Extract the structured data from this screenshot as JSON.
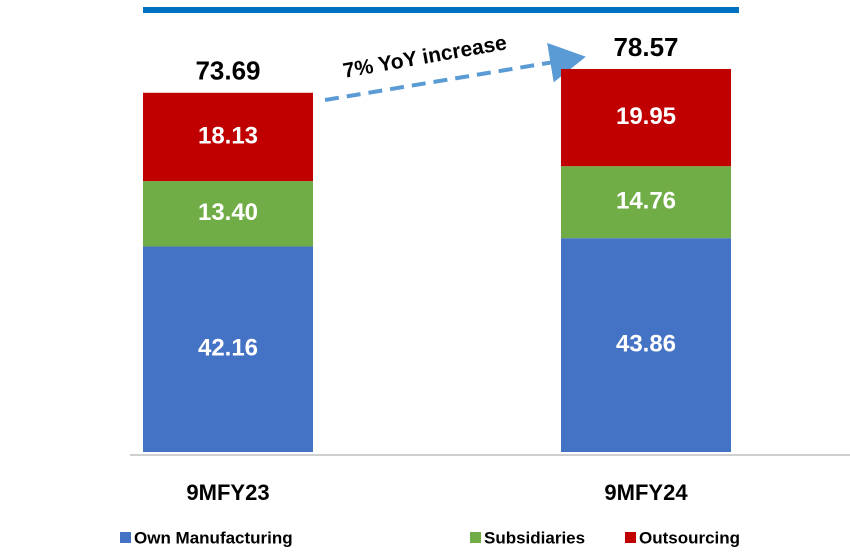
{
  "chart_data": {
    "type": "stacked_bar",
    "annotation": "7% YoY increase",
    "categories": [
      "9MFY23",
      "9MFY24"
    ],
    "series": [
      {
        "name": "Own Manufacturing",
        "color": "#4472c4",
        "values": [
          42.16,
          43.86
        ]
      },
      {
        "name": "Subsidiaries",
        "color": "#70ad47",
        "values": [
          13.4,
          14.76
        ],
        "value_labels": [
          "13.40",
          "14.76"
        ]
      },
      {
        "name": "Outsourcing",
        "color": "#c00000",
        "values": [
          18.13,
          19.95
        ]
      }
    ],
    "totals": [
      73.69,
      78.57
    ],
    "ylim": [
      0,
      80
    ],
    "legend": "bottom"
  }
}
